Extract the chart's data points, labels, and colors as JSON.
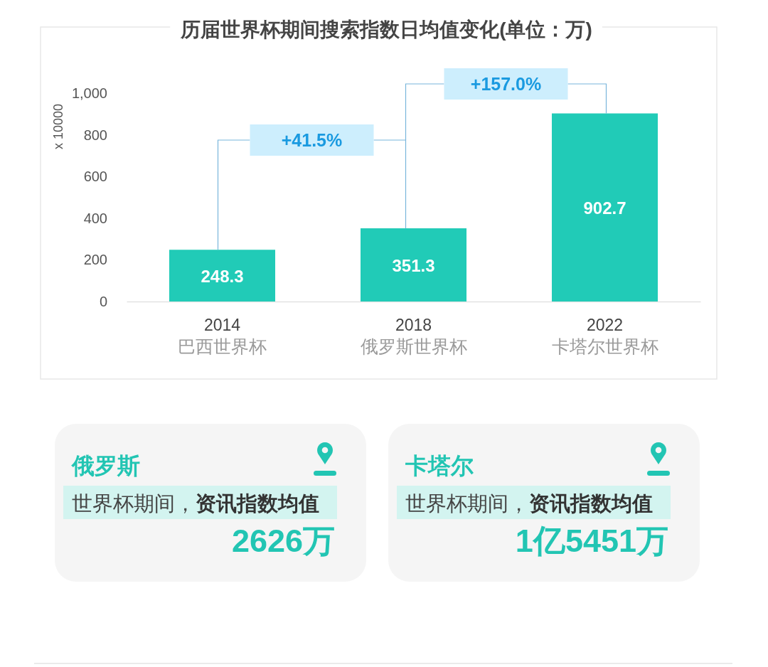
{
  "chart_data": [
    {
      "type": "bar",
      "title": "历届世界杯期间搜索指数日均值变化(单位：万)",
      "ylabel": "x 10000",
      "categories": [
        "2014\n巴西世界杯",
        "2018\n俄罗斯世界杯",
        "2022\n卡塔尔世界杯"
      ],
      "values": [
        248.3,
        351.3,
        902.7
      ],
      "color": "#21cbb7",
      "ylim": [
        0,
        1000
      ],
      "yticks": [
        0,
        200,
        400,
        600,
        800,
        {
          "value": 1000,
          "label": "1,000"
        }
      ],
      "data_labels": true,
      "annotations": [
        "+41.5%",
        "+157.0%"
      ]
    },
    {
      "type": "other",
      "title": "俄罗斯",
      "annotations": [
        "世界杯期间，",
        "资讯指数均值",
        "2626万"
      ]
    },
    {
      "type": "other",
      "title": "卡塔尔",
      "annotations": [
        "世界杯期间，",
        "资讯指数均值",
        "1亿5451万"
      ]
    }
  ]
}
